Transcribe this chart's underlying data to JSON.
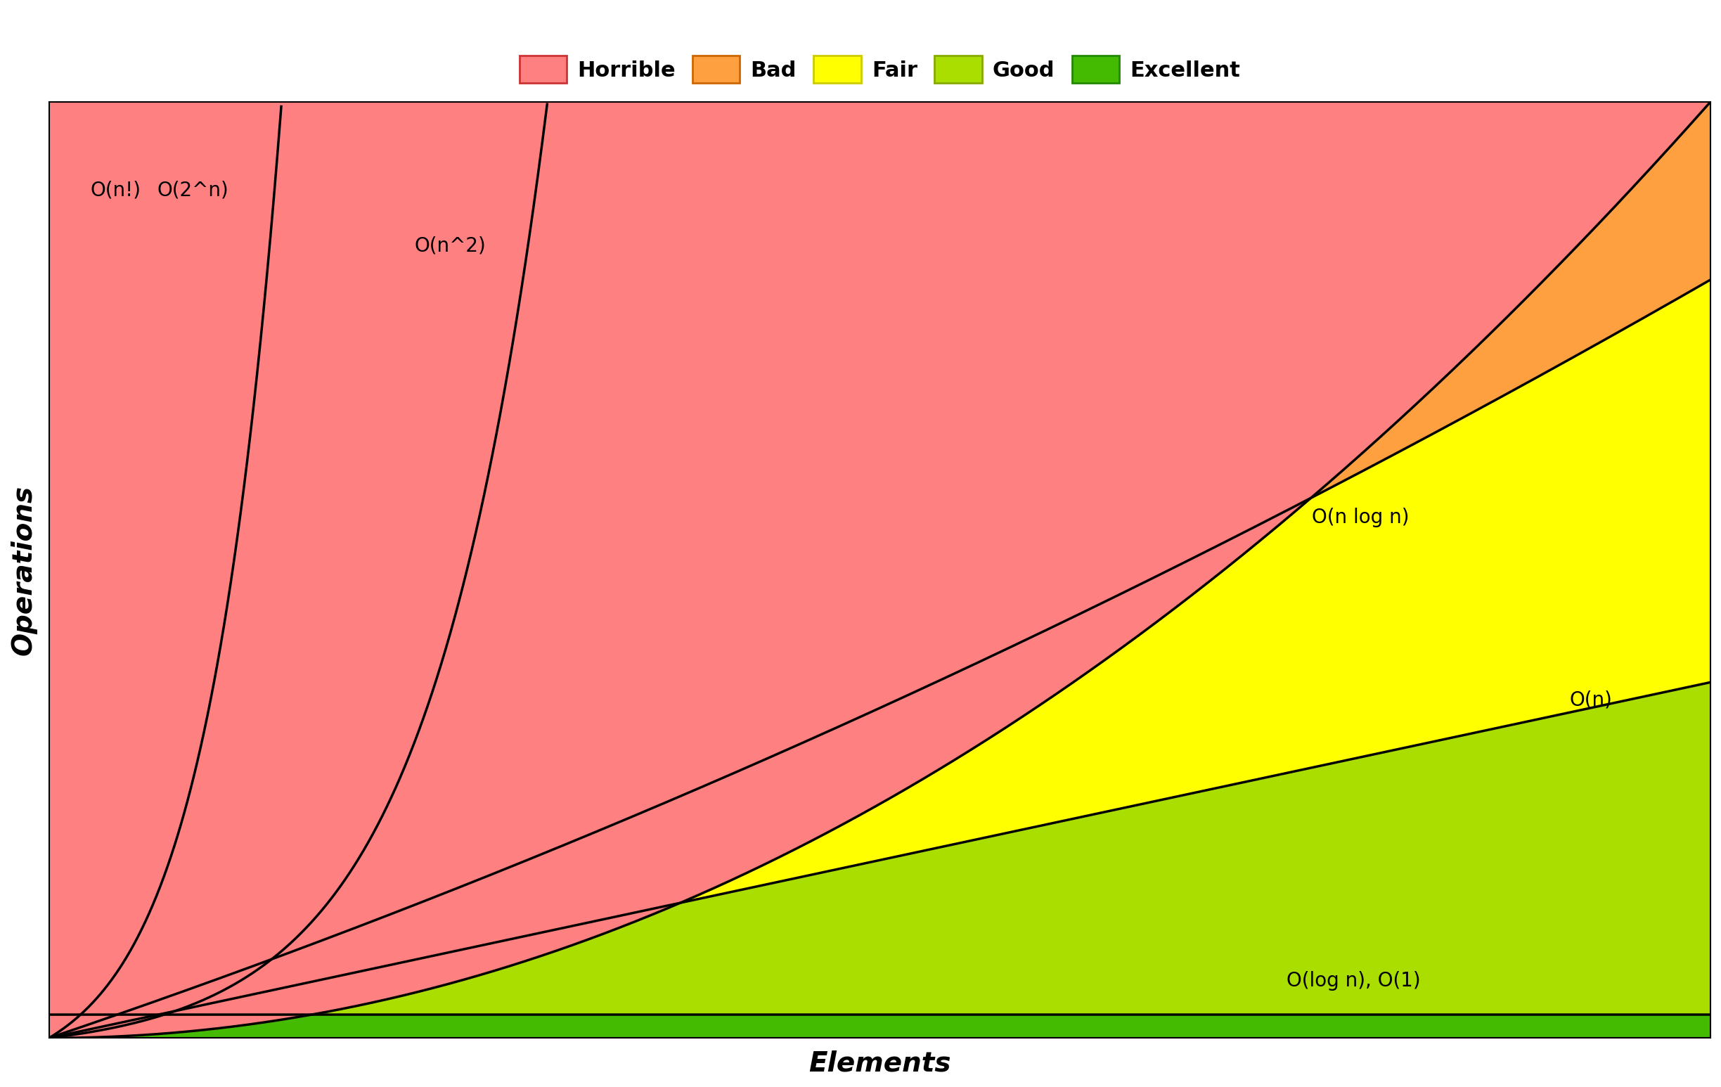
{
  "xlabel": "Elements",
  "ylabel": "Operations",
  "colors": {
    "horrible": "#FF8080",
    "bad": "#FFA040",
    "fair": "#FFFF00",
    "good": "#AADD00",
    "excellent": "#44BB00"
  },
  "legend_labels": [
    "Horrible",
    "Bad",
    "Fair",
    "Good",
    "Excellent"
  ],
  "legend_colors": [
    "#FF8080",
    "#FFA040",
    "#FFFF00",
    "#AADD00",
    "#44BB00"
  ],
  "legend_edge_colors": [
    "#cc3333",
    "#cc6600",
    "#cccc00",
    "#88aa00",
    "#228800"
  ],
  "line_color": "#000000",
  "line_width": 2.5,
  "ann_fontsize": 20,
  "xlabel_fontsize": 28,
  "ylabel_fontsize": 28
}
